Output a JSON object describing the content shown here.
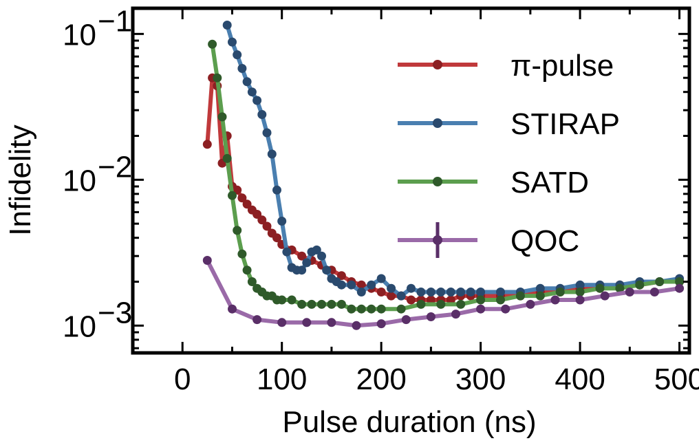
{
  "chart_data": {
    "type": "line",
    "xlabel": "Pulse duration (ns)",
    "ylabel": "Infidelity",
    "xlim": [
      -50,
      510
    ],
    "ylim": [
      0.00065,
      0.15
    ],
    "yscale": "log",
    "xticks": [
      0,
      100,
      200,
      300,
      400,
      500
    ],
    "xtick_labels": [
      "0",
      "100",
      "200",
      "300",
      "400",
      "500"
    ],
    "yticks": [
      {
        "base": "10",
        "exp": "−3",
        "value": 0.001
      },
      {
        "base": "10",
        "exp": "−2",
        "value": 0.01
      },
      {
        "base": "10",
        "exp": "−1",
        "value": 0.1
      }
    ],
    "grid": false,
    "legend_position": "top-right",
    "series": [
      {
        "name": "π-pulse",
        "color": "#c0393b",
        "marker_color": "#8c1f22",
        "x": [
          25,
          30,
          35,
          40,
          45,
          50,
          55,
          60,
          65,
          70,
          75,
          80,
          85,
          90,
          95,
          100,
          110,
          120,
          130,
          140,
          150,
          160,
          170,
          180,
          190,
          200,
          210,
          220,
          230,
          240,
          250,
          260,
          270,
          280,
          290,
          300,
          320,
          340,
          360,
          380,
          400,
          420,
          440,
          460,
          480,
          500
        ],
        "y": [
          0.0175,
          0.05,
          0.044,
          0.013,
          0.02,
          0.009,
          0.0085,
          0.0075,
          0.0068,
          0.0062,
          0.0058,
          0.0053,
          0.0048,
          0.0043,
          0.004,
          0.0036,
          0.0033,
          0.003,
          0.0028,
          0.0026,
          0.0024,
          0.0022,
          0.002,
          0.0019,
          0.0018,
          0.0017,
          0.0016,
          0.0016,
          0.0015,
          0.0015,
          0.0015,
          0.0015,
          0.0015,
          0.0016,
          0.0016,
          0.0016,
          0.0016,
          0.0016,
          0.0017,
          0.0017,
          0.0018,
          0.0018,
          0.0019,
          0.0019,
          0.002,
          0.002
        ]
      },
      {
        "name": "STIRAP",
        "color": "#4a7fb0",
        "marker_color": "#2a4a6e",
        "x": [
          45,
          50,
          55,
          60,
          65,
          70,
          75,
          80,
          85,
          90,
          95,
          100,
          105,
          110,
          115,
          120,
          125,
          130,
          135,
          140,
          145,
          150,
          155,
          160,
          170,
          180,
          190,
          200,
          210,
          220,
          230,
          240,
          250,
          260,
          270,
          280,
          290,
          300,
          320,
          340,
          360,
          380,
          400,
          420,
          440,
          460,
          480,
          500
        ],
        "y": [
          0.115,
          0.088,
          0.072,
          0.058,
          0.047,
          0.04,
          0.035,
          0.028,
          0.021,
          0.015,
          0.0085,
          0.0052,
          0.0032,
          0.0025,
          0.0024,
          0.0024,
          0.0027,
          0.0032,
          0.0033,
          0.003,
          0.0024,
          0.0021,
          0.002,
          0.0019,
          0.0019,
          0.0017,
          0.0019,
          0.0021,
          0.0018,
          0.0016,
          0.0018,
          0.0017,
          0.0017,
          0.0017,
          0.0017,
          0.0017,
          0.0017,
          0.0017,
          0.0017,
          0.0017,
          0.0018,
          0.0018,
          0.0019,
          0.0019,
          0.0019,
          0.002,
          0.002,
          0.0021
        ]
      },
      {
        "name": "SATD",
        "color": "#5c9e4e",
        "marker_color": "#2f5a2a",
        "x": [
          30,
          35,
          40,
          45,
          50,
          55,
          60,
          65,
          70,
          75,
          80,
          85,
          90,
          95,
          100,
          110,
          120,
          130,
          140,
          150,
          160,
          170,
          180,
          190,
          200,
          220,
          240,
          260,
          280,
          300,
          320,
          340,
          360,
          380,
          400,
          420,
          440,
          460,
          480,
          500
        ],
        "y": [
          0.085,
          0.05,
          0.027,
          0.014,
          0.0078,
          0.0045,
          0.0031,
          0.0024,
          0.002,
          0.0018,
          0.0017,
          0.0016,
          0.0016,
          0.0015,
          0.0015,
          0.0015,
          0.0014,
          0.0014,
          0.0014,
          0.0014,
          0.0014,
          0.0013,
          0.0013,
          0.0013,
          0.0013,
          0.0013,
          0.0014,
          0.0014,
          0.0014,
          0.0015,
          0.0015,
          0.0016,
          0.0016,
          0.0017,
          0.0017,
          0.0018,
          0.0018,
          0.0019,
          0.002,
          0.002
        ]
      },
      {
        "name": "QOC",
        "color": "#9a6aa8",
        "marker_color": "#5a2f68",
        "x": [
          25,
          50,
          75,
          100,
          125,
          150,
          175,
          200,
          225,
          250,
          275,
          300,
          325,
          350,
          375,
          400,
          425,
          450,
          475,
          500
        ],
        "y": [
          0.0028,
          0.0013,
          0.0011,
          0.00105,
          0.00105,
          0.00105,
          0.001,
          0.00103,
          0.0011,
          0.00115,
          0.0012,
          0.0013,
          0.0013,
          0.0014,
          0.0015,
          0.0015,
          0.0016,
          0.0017,
          0.0017,
          0.0018
        ]
      }
    ]
  }
}
